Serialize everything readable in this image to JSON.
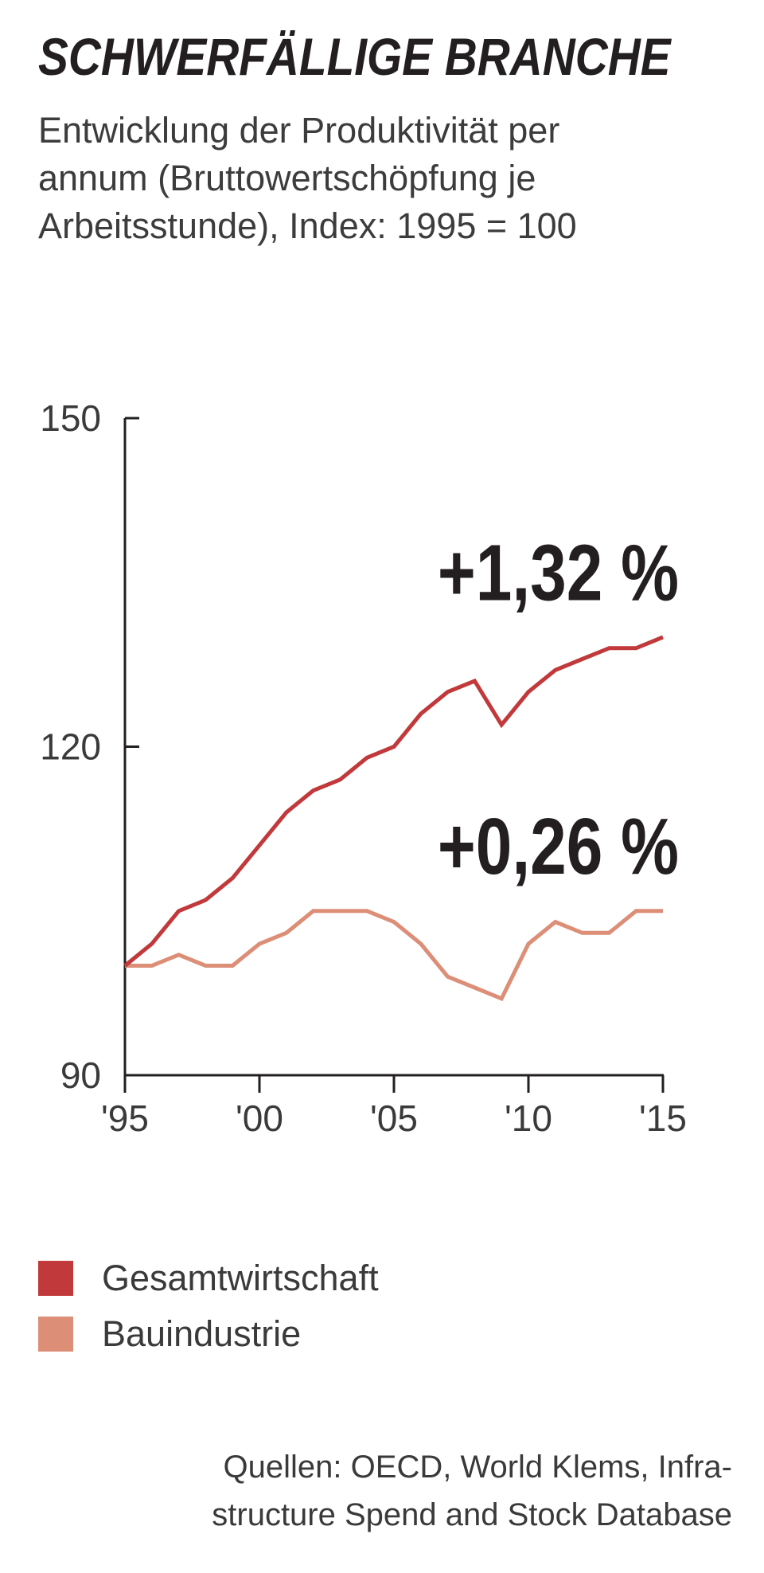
{
  "title": "SCHWERFÄLLIGE BRANCHE",
  "subtitle_lines": [
    "Entwicklung der Produktivität per",
    "annum (Bruttowertschöpfung je",
    "Arbeitsstunde), Index: 1995 = 100"
  ],
  "source_lines": [
    "Quellen: OECD, World Klems, Infra-",
    "structure Spend and Stock Database"
  ],
  "chart_data": {
    "type": "line",
    "x": [
      1995,
      1996,
      1997,
      1998,
      1999,
      2000,
      2001,
      2002,
      2003,
      2004,
      2005,
      2006,
      2007,
      2008,
      2009,
      2010,
      2011,
      2012,
      2013,
      2014,
      2015
    ],
    "xlim": [
      1995,
      2015
    ],
    "ylim": [
      90,
      150
    ],
    "x_ticks": [
      {
        "value": 1995,
        "label": "'95"
      },
      {
        "value": 2000,
        "label": "'00"
      },
      {
        "value": 2005,
        "label": "'05"
      },
      {
        "value": 2010,
        "label": "'10"
      },
      {
        "value": 2015,
        "label": "'15"
      }
    ],
    "y_ticks": [
      {
        "value": 150,
        "label": "150"
      },
      {
        "value": 120,
        "label": "120"
      },
      {
        "value": 90,
        "label": "90"
      }
    ],
    "grid": false,
    "legend_position": "bottom-left",
    "series": [
      {
        "name": "Gesamtwirtschaft",
        "color": "#c1393a",
        "values": [
          100,
          102,
          105,
          106,
          108,
          111,
          114,
          116,
          117,
          119,
          120,
          123,
          125,
          126,
          122,
          125,
          127,
          128,
          129,
          129,
          130
        ],
        "annotation": "+1,32 %",
        "annotation_anchor": {
          "x": 2015,
          "y": 136
        }
      },
      {
        "name": "Bauindustrie",
        "color": "#dc8e77",
        "values": [
          100,
          100,
          101,
          100,
          100,
          102,
          103,
          105,
          105,
          105,
          104,
          102,
          99,
          98,
          97,
          102,
          104,
          103,
          103,
          105,
          105
        ],
        "annotation": "+0,26 %",
        "annotation_anchor": {
          "x": 2015,
          "y": 111
        }
      }
    ]
  }
}
